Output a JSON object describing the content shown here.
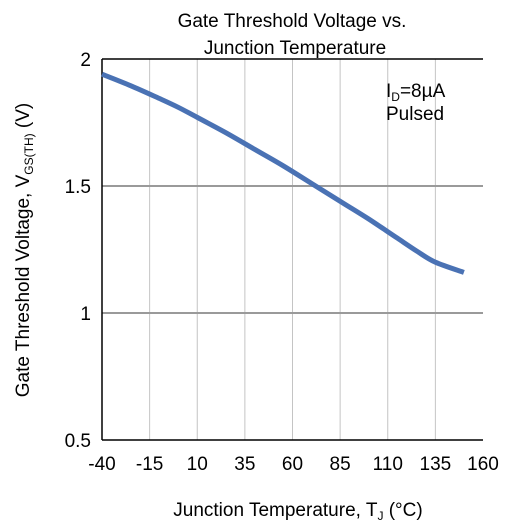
{
  "chart_data": {
    "type": "line",
    "title_lines": [
      "Gate Threshold  Voltage vs.",
      "Junction Temperature"
    ],
    "xlabel": {
      "text": "Junction Temperature, T",
      "sub": "J",
      "tail": " (°C)"
    },
    "ylabel": {
      "text": "Gate Threshold  Voltage, V",
      "sub": "GS(TH)",
      "tail": " (V)"
    },
    "xlim": [
      -40,
      160
    ],
    "ylim": [
      0.5,
      2
    ],
    "x_ticks": [
      -40,
      -15,
      10,
      35,
      60,
      85,
      110,
      135,
      160
    ],
    "x_tick_labels": [
      "-40",
      "-15",
      "10",
      "35",
      "60",
      "85",
      "110",
      "135",
      "160"
    ],
    "y_ticks": [
      0.5,
      1,
      1.5,
      2
    ],
    "y_tick_labels": [
      "0.5",
      "1",
      "1.5",
      "2"
    ],
    "grid": {
      "vertical": true,
      "horizontal_at": [
        1,
        1.5
      ]
    },
    "annotation": {
      "line1_main": "I",
      "line1_sub": "D",
      "line1_tail": "=8µA",
      "line2": "Pulsed"
    },
    "series": [
      {
        "color": "#4a72b4",
        "x": [
          -40,
          -25,
          -10,
          0,
          10,
          25,
          40,
          55,
          70,
          85,
          100,
          115,
          125,
          135,
          150
        ],
        "y": [
          1.94,
          1.895,
          1.845,
          1.81,
          1.77,
          1.71,
          1.645,
          1.58,
          1.51,
          1.44,
          1.37,
          1.295,
          1.245,
          1.2,
          1.16
        ]
      }
    ]
  }
}
